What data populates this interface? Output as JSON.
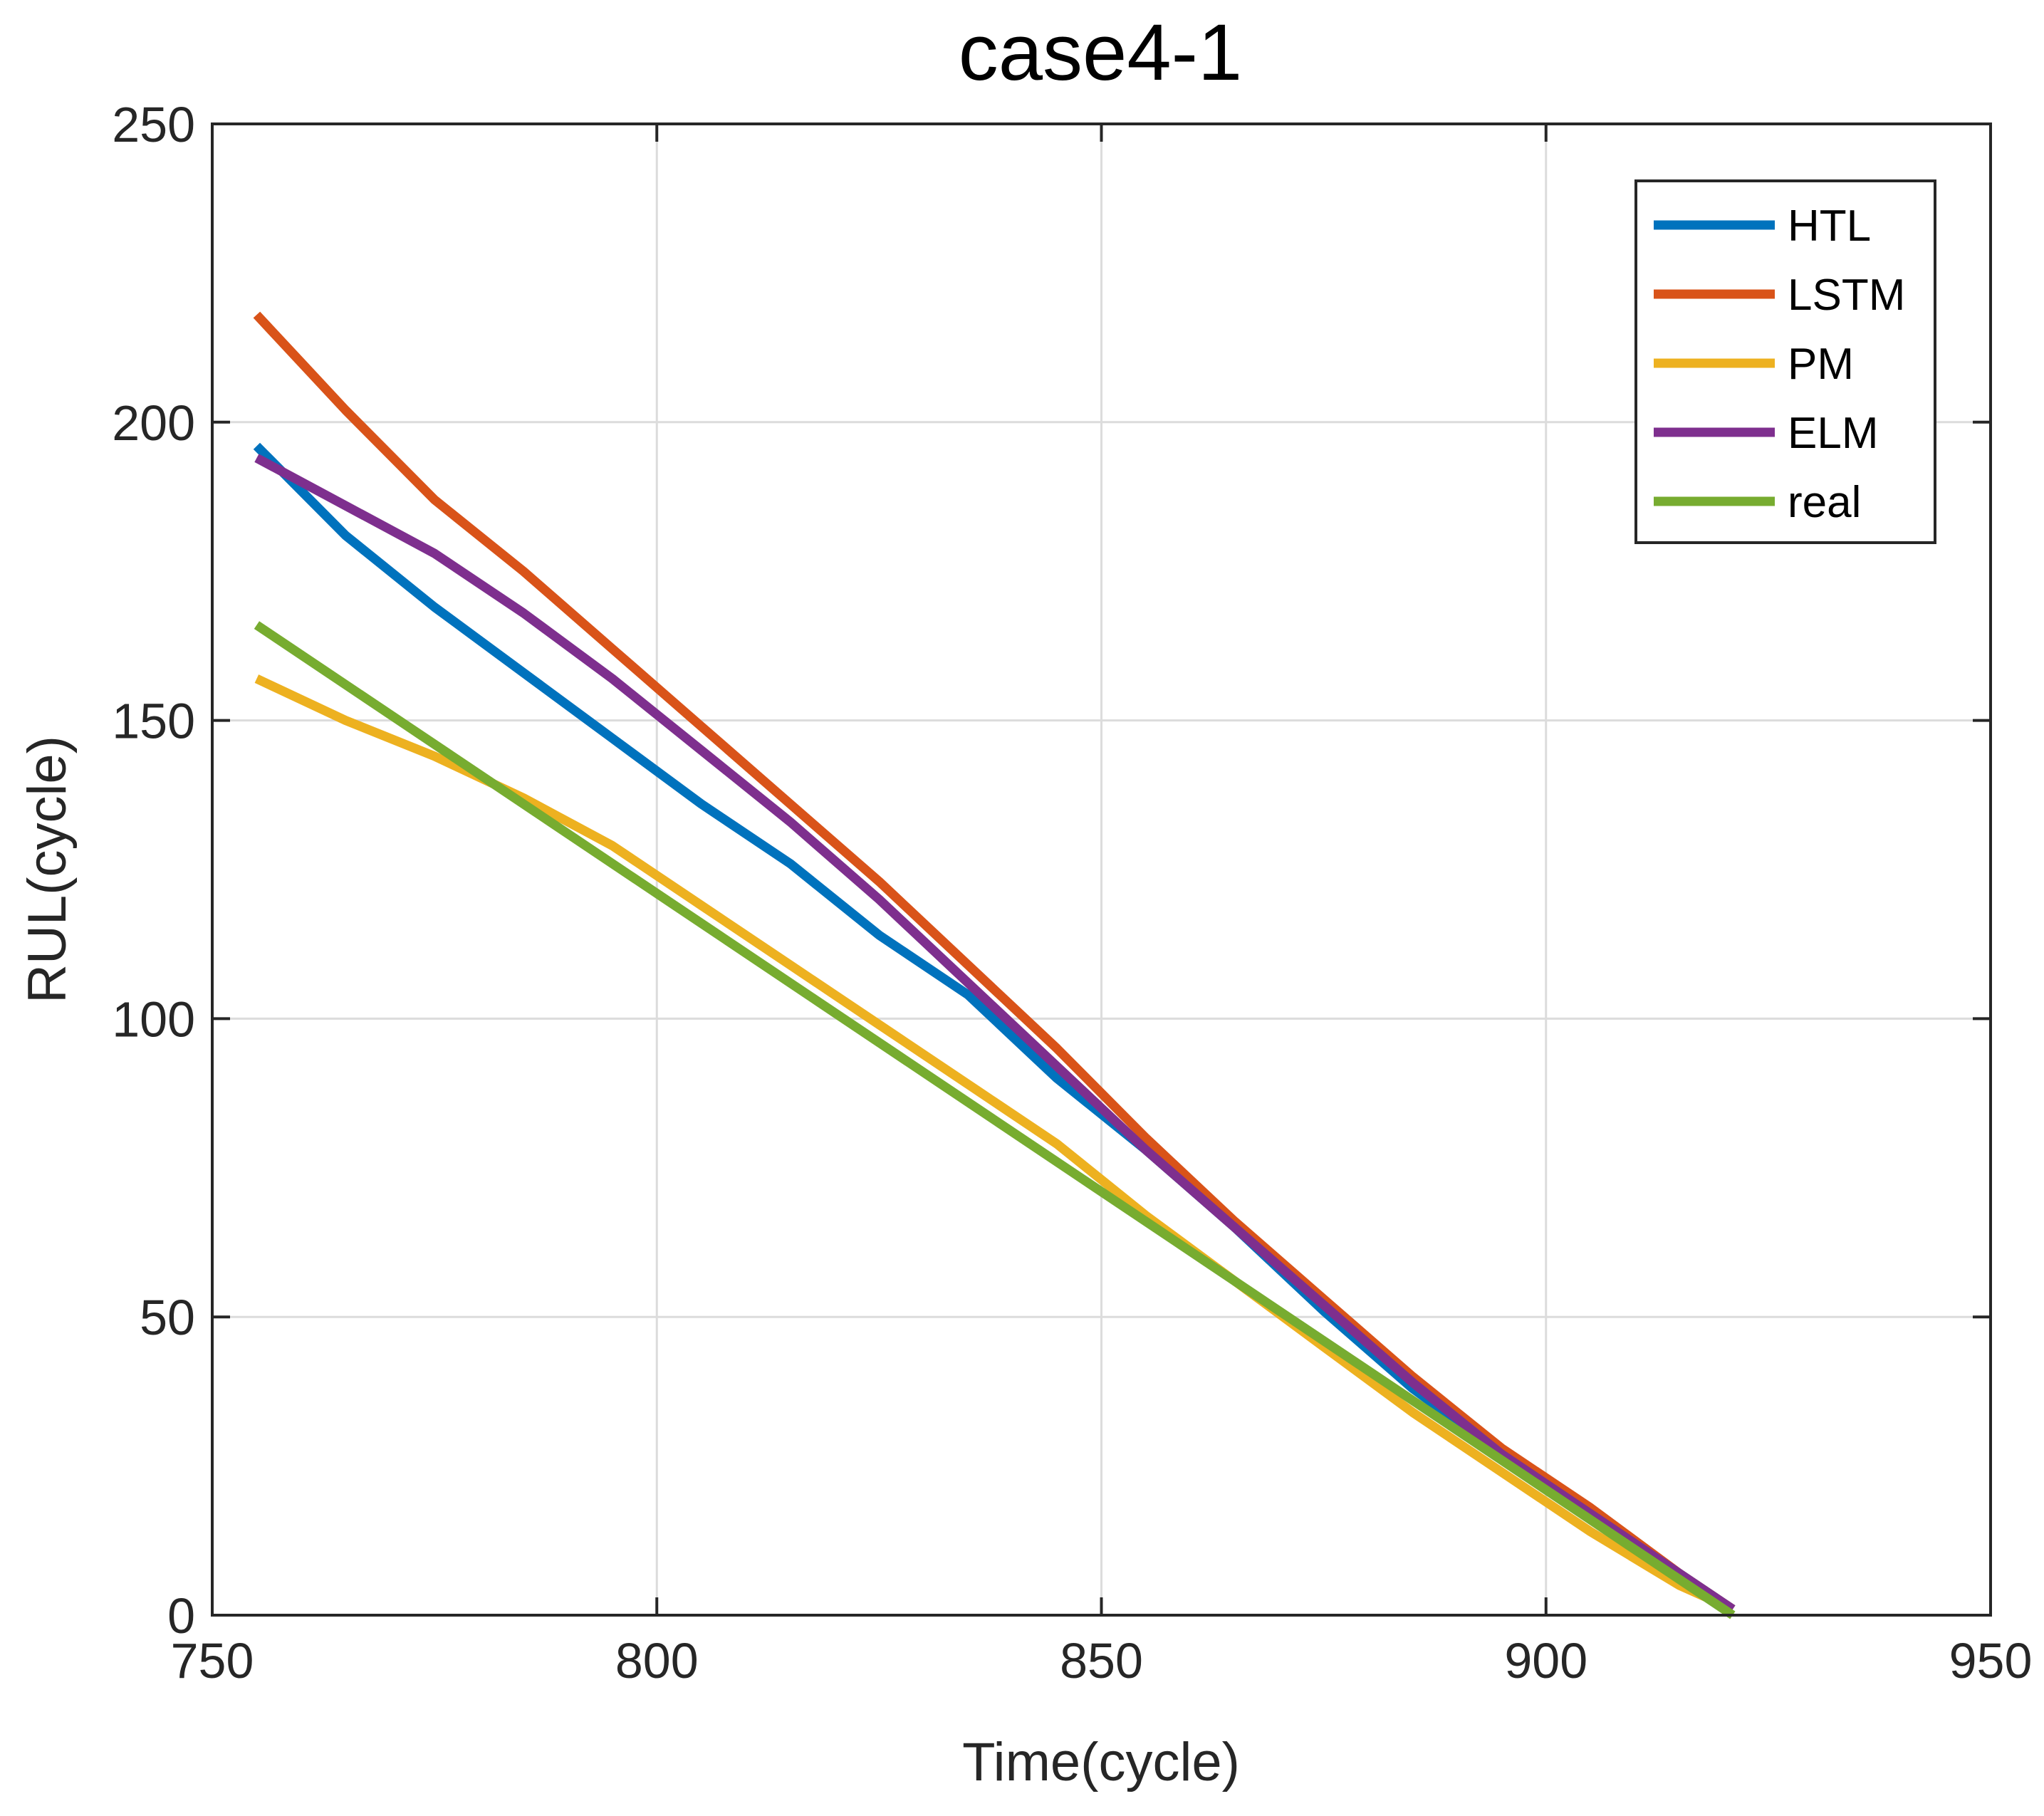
{
  "chart_data": {
    "type": "line",
    "title": "case4-1",
    "xlabel": "Time(cycle)",
    "ylabel": "RUL(cycle)",
    "xlim": [
      750,
      950
    ],
    "ylim": [
      0,
      250
    ],
    "xticks": [
      750,
      800,
      850,
      900,
      950
    ],
    "yticks": [
      0,
      50,
      100,
      150,
      200,
      250
    ],
    "xtick_labels": [
      "750",
      "800",
      "850",
      "900",
      "950"
    ],
    "ytick_labels": [
      "0",
      "50",
      "100",
      "150",
      "200",
      "250"
    ],
    "grid": true,
    "legend_position": "top-right",
    "series": [
      {
        "name": "HTL",
        "color": "#0072BD",
        "x": [
          755,
          765,
          775,
          785,
          795,
          805,
          815,
          825,
          835,
          845,
          855,
          865,
          875,
          885,
          895,
          905,
          915,
          921
        ],
        "y": [
          196,
          181,
          169,
          158,
          147,
          136,
          126,
          114,
          104,
          90,
          78,
          65,
          51,
          38,
          27,
          17,
          7,
          1
        ]
      },
      {
        "name": "LSTM",
        "color": "#D95319",
        "x": [
          755,
          765,
          775,
          785,
          795,
          805,
          815,
          825,
          835,
          845,
          855,
          865,
          875,
          885,
          895,
          905,
          915,
          921
        ],
        "y": [
          218,
          202,
          187,
          175,
          162,
          149,
          136,
          123,
          109,
          95,
          80,
          66,
          53,
          40,
          28,
          18,
          7,
          1
        ]
      },
      {
        "name": "PM",
        "color": "#EDB120",
        "x": [
          755,
          765,
          775,
          785,
          795,
          805,
          815,
          825,
          835,
          845,
          855,
          865,
          875,
          885,
          895,
          905,
          915,
          921
        ],
        "y": [
          157,
          150,
          144,
          137,
          129,
          119,
          109,
          99,
          89,
          79,
          67,
          56,
          45,
          34,
          24,
          14,
          5,
          1
        ]
      },
      {
        "name": "ELM",
        "color": "#7E2F8E",
        "x": [
          755,
          765,
          775,
          785,
          795,
          805,
          815,
          825,
          835,
          845,
          855,
          865,
          875,
          885,
          895,
          905,
          915,
          921
        ],
        "y": [
          194,
          186,
          178,
          168,
          157,
          145,
          133,
          120,
          106,
          92,
          78,
          65,
          52,
          39,
          27,
          17,
          7,
          1
        ]
      },
      {
        "name": "real",
        "color": "#77AC30",
        "x": [
          755,
          921
        ],
        "y": [
          166,
          0
        ]
      }
    ]
  }
}
